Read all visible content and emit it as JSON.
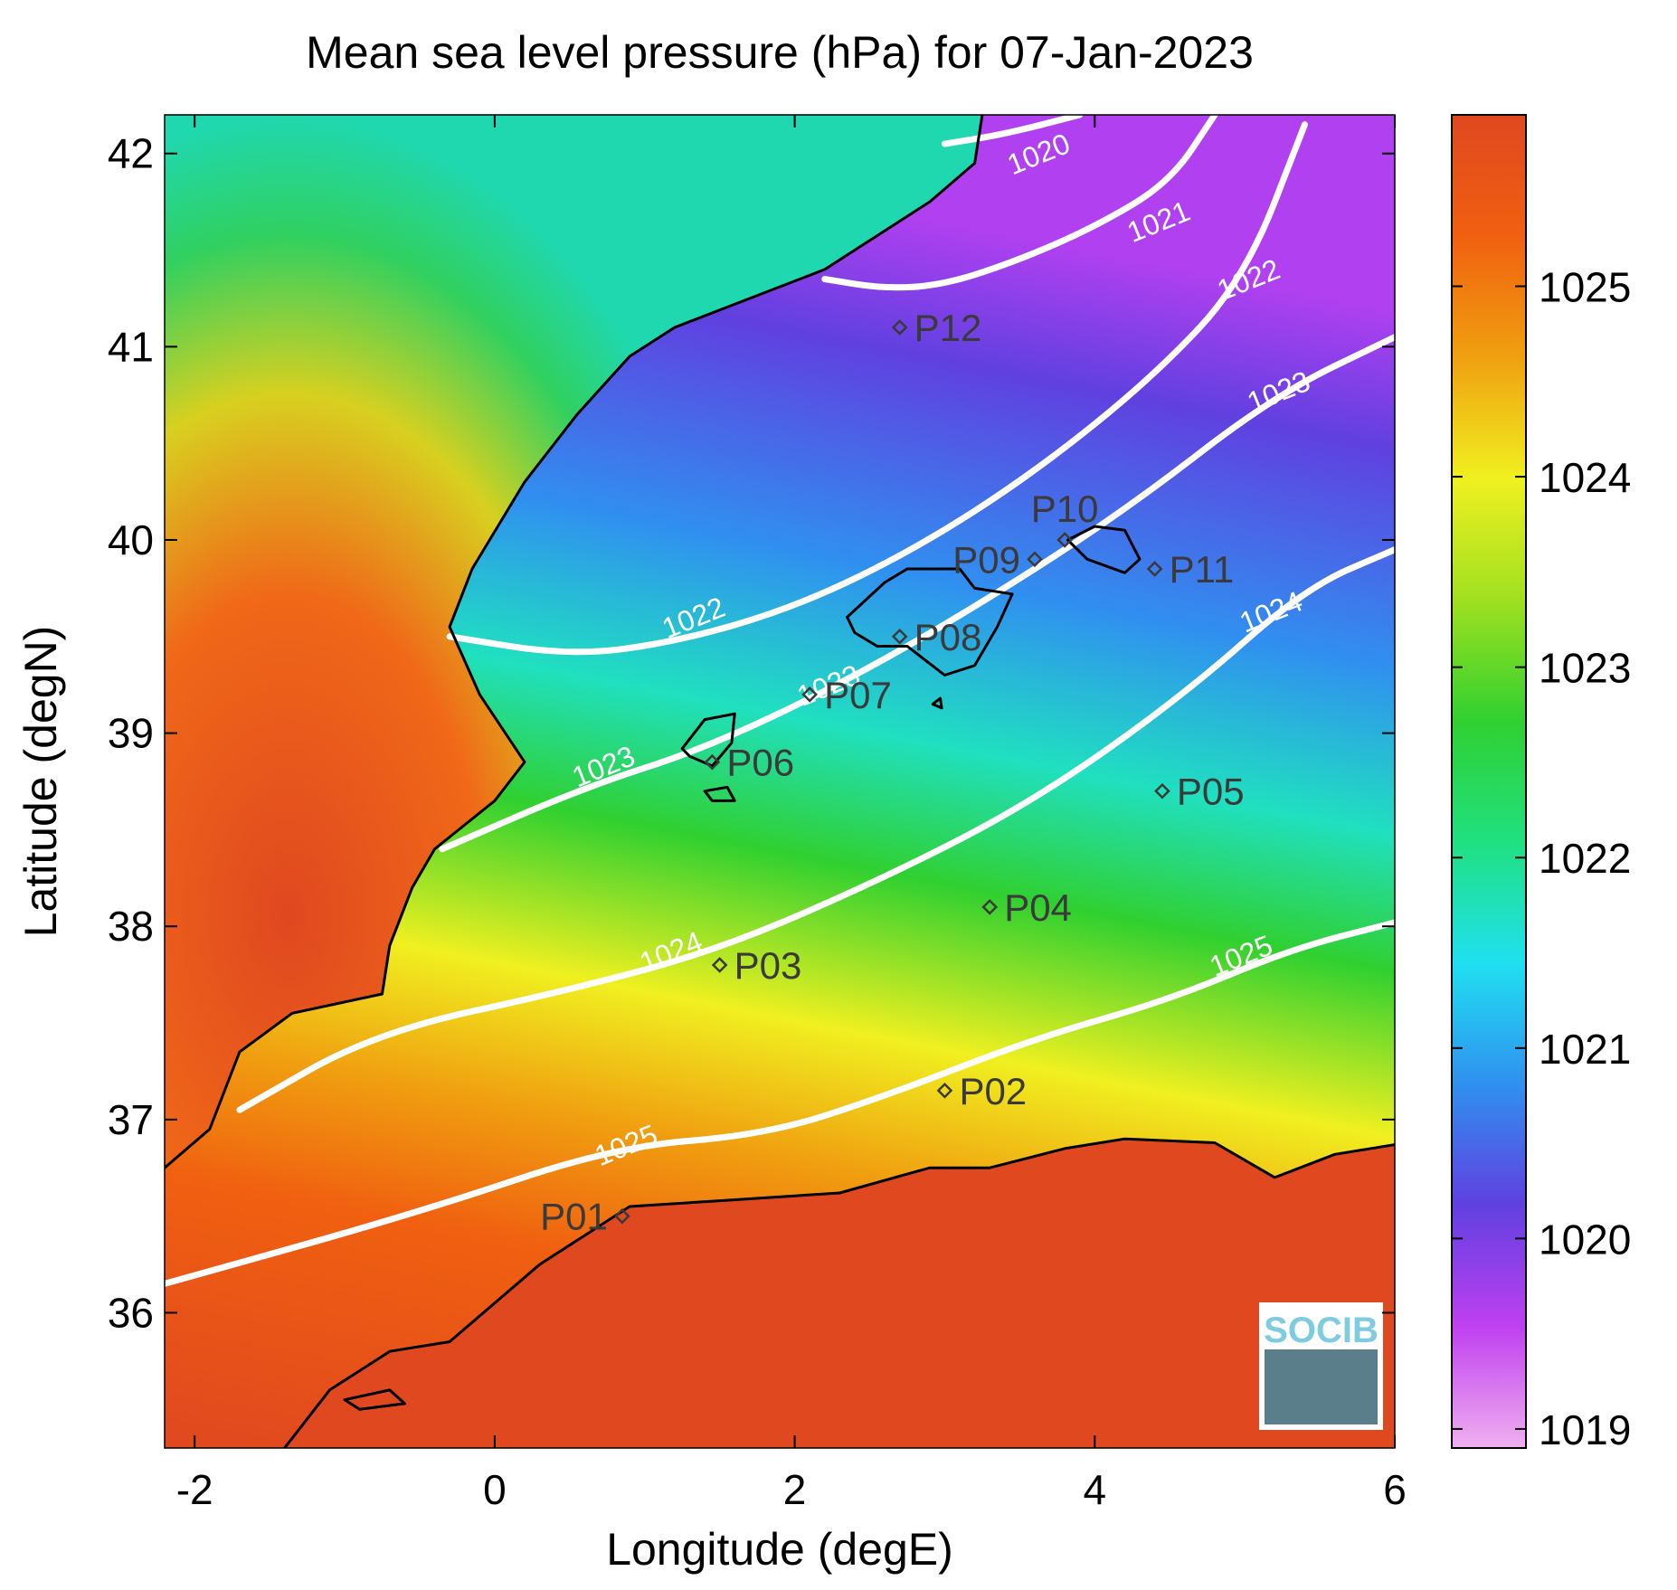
{
  "title": "Mean sea level pressure (hPa) for 07-Jan-2023",
  "x_axis": {
    "label": "Longitude (degE)",
    "range": [
      -2.2,
      6
    ],
    "ticks": [
      -2,
      0,
      2,
      4,
      6
    ],
    "tick_labels": [
      "-2",
      "0",
      "2",
      "4",
      "6"
    ]
  },
  "y_axis": {
    "label": "Latitude (degN)",
    "range": [
      35.3,
      42.2
    ],
    "ticks": [
      36,
      37,
      38,
      39,
      40,
      41,
      42
    ],
    "tick_labels": [
      "36",
      "37",
      "38",
      "39",
      "40",
      "41",
      "42"
    ]
  },
  "colorbar": {
    "range": [
      1018.9,
      1025.9
    ],
    "ticks": [
      1019,
      1020,
      1021,
      1022,
      1023,
      1024,
      1025
    ],
    "tick_labels": [
      "1019",
      "1020",
      "1021",
      "1022",
      "1023",
      "1024",
      "1025"
    ],
    "colormap": [
      "#f0b0f0",
      "#c040f0",
      "#6040e0",
      "#3090f0",
      "#20e0f0",
      "#20e080",
      "#30d030",
      "#a0e020",
      "#f0f020",
      "#f0a010",
      "#f06010",
      "#e04820"
    ]
  },
  "contours": [
    {
      "level": 1020,
      "label": "1020",
      "points": [
        [
          3.0,
          42.05
        ],
        [
          3.4,
          42.1
        ],
        [
          3.9,
          42.2
        ]
      ]
    },
    {
      "level": 1021,
      "label": "1021",
      "points": [
        [
          2.2,
          41.35
        ],
        [
          2.6,
          41.3
        ],
        [
          3.0,
          41.32
        ],
        [
          3.5,
          41.45
        ],
        [
          4.0,
          41.62
        ],
        [
          4.5,
          41.85
        ],
        [
          4.8,
          42.2
        ]
      ]
    },
    {
      "level": 1022,
      "label": "1022",
      "points": [
        [
          -0.3,
          39.5
        ],
        [
          0.5,
          39.4
        ],
        [
          1.2,
          39.47
        ],
        [
          2.0,
          39.65
        ],
        [
          2.8,
          39.95
        ],
        [
          3.6,
          40.35
        ],
        [
          4.4,
          40.85
        ],
        [
          5.0,
          41.35
        ],
        [
          5.4,
          42.15
        ]
      ]
    },
    {
      "level": 1023,
      "label": "1023",
      "points": [
        [
          -0.35,
          38.4
        ],
        [
          0.6,
          38.72
        ],
        [
          1.4,
          38.92
        ],
        [
          2.3,
          39.25
        ],
        [
          3.2,
          39.65
        ],
        [
          4.2,
          40.15
        ],
        [
          5.2,
          40.75
        ],
        [
          6.0,
          41.05
        ]
      ]
    },
    {
      "level": 1024,
      "label": "1024",
      "points": [
        [
          -1.7,
          37.05
        ],
        [
          -0.8,
          37.45
        ],
        [
          0.5,
          37.67
        ],
        [
          1.5,
          37.88
        ],
        [
          2.6,
          38.25
        ],
        [
          3.6,
          38.65
        ],
        [
          4.6,
          39.2
        ],
        [
          5.4,
          39.75
        ],
        [
          6.0,
          39.95
        ]
      ]
    },
    {
      "level": 1025,
      "label": "1025",
      "points": [
        [
          -2.2,
          36.15
        ],
        [
          -0.5,
          36.52
        ],
        [
          0.8,
          36.86
        ],
        [
          1.8,
          36.92
        ],
        [
          2.6,
          37.12
        ],
        [
          3.6,
          37.42
        ],
        [
          4.5,
          37.62
        ],
        [
          5.3,
          37.88
        ],
        [
          6.0,
          38.02
        ]
      ]
    }
  ],
  "contour_labels": [
    {
      "text": "1020",
      "lon": 3.65,
      "lat": 41.95
    },
    {
      "text": "1021",
      "lon": 4.45,
      "lat": 41.6
    },
    {
      "text": "1022",
      "lon": 1.35,
      "lat": 39.55
    },
    {
      "text": "1022",
      "lon": 5.05,
      "lat": 41.3
    },
    {
      "text": "1023",
      "lon": 0.75,
      "lat": 38.78
    },
    {
      "text": "1023",
      "lon": 2.25,
      "lat": 39.2
    },
    {
      "text": "1023",
      "lon": 5.25,
      "lat": 40.72
    },
    {
      "text": "1024",
      "lon": 1.2,
      "lat": 37.82
    },
    {
      "text": "1024",
      "lon": 5.2,
      "lat": 39.58
    },
    {
      "text": "1025",
      "lon": 0.9,
      "lat": 36.82
    },
    {
      "text": "1025",
      "lon": 5.0,
      "lat": 37.8
    }
  ],
  "stations": [
    {
      "name": "P01",
      "lon": 0.85,
      "lat": 36.5,
      "side": "left"
    },
    {
      "name": "P02",
      "lon": 3.0,
      "lat": 37.15,
      "side": "right"
    },
    {
      "name": "P03",
      "lon": 1.5,
      "lat": 37.8,
      "side": "right"
    },
    {
      "name": "P04",
      "lon": 3.3,
      "lat": 38.1,
      "side": "right"
    },
    {
      "name": "P05",
      "lon": 4.45,
      "lat": 38.7,
      "side": "right"
    },
    {
      "name": "P06",
      "lon": 1.45,
      "lat": 38.85,
      "side": "right"
    },
    {
      "name": "P07",
      "lon": 2.1,
      "lat": 39.2,
      "side": "right"
    },
    {
      "name": "P08",
      "lon": 2.7,
      "lat": 39.5,
      "side": "right"
    },
    {
      "name": "P09",
      "lon": 3.6,
      "lat": 39.9,
      "side": "left"
    },
    {
      "name": "P10",
      "lon": 3.8,
      "lat": 40.0,
      "side": "above"
    },
    {
      "name": "P11",
      "lon": 4.4,
      "lat": 39.85,
      "side": "right"
    },
    {
      "name": "P12",
      "lon": 2.7,
      "lat": 41.1,
      "side": "right"
    }
  ],
  "coastlines": {
    "iberia": [
      [
        -2.2,
        36.75
      ],
      [
        -1.9,
        36.95
      ],
      [
        -1.7,
        37.35
      ],
      [
        -1.35,
        37.55
      ],
      [
        -0.75,
        37.65
      ],
      [
        -0.7,
        37.9
      ],
      [
        -0.55,
        38.2
      ],
      [
        -0.4,
        38.4
      ],
      [
        0.0,
        38.65
      ],
      [
        0.2,
        38.85
      ],
      [
        -0.1,
        39.2
      ],
      [
        -0.3,
        39.55
      ],
      [
        -0.15,
        39.85
      ],
      [
        0.2,
        40.3
      ],
      [
        0.55,
        40.65
      ],
      [
        0.9,
        40.95
      ],
      [
        1.2,
        41.1
      ],
      [
        2.2,
        41.4
      ],
      [
        2.9,
        41.75
      ],
      [
        3.2,
        41.95
      ],
      [
        3.25,
        42.2
      ]
    ],
    "africa": [
      [
        -1.6,
        35.1
      ],
      [
        -1.1,
        35.6
      ],
      [
        -0.7,
        35.8
      ],
      [
        -0.3,
        35.85
      ],
      [
        0.3,
        36.25
      ],
      [
        0.9,
        36.55
      ],
      [
        1.5,
        36.58
      ],
      [
        2.3,
        36.62
      ],
      [
        2.9,
        36.75
      ],
      [
        3.3,
        36.75
      ],
      [
        3.8,
        36.85
      ],
      [
        4.2,
        36.9
      ],
      [
        4.8,
        36.88
      ],
      [
        5.2,
        36.7
      ],
      [
        5.6,
        36.82
      ],
      [
        6.0,
        36.87
      ]
    ],
    "mallorca": [
      [
        2.35,
        39.6
      ],
      [
        2.6,
        39.78
      ],
      [
        2.75,
        39.85
      ],
      [
        3.1,
        39.85
      ],
      [
        3.2,
        39.75
      ],
      [
        3.45,
        39.72
      ],
      [
        3.35,
        39.55
      ],
      [
        3.2,
        39.35
      ],
      [
        3.0,
        39.3
      ],
      [
        2.75,
        39.45
      ],
      [
        2.55,
        39.45
      ],
      [
        2.4,
        39.52
      ],
      [
        2.35,
        39.6
      ]
    ],
    "menorca": [
      [
        3.82,
        40.0
      ],
      [
        4.0,
        40.07
      ],
      [
        4.2,
        40.05
      ],
      [
        4.3,
        39.9
      ],
      [
        4.2,
        39.83
      ],
      [
        3.95,
        39.9
      ],
      [
        3.82,
        40.0
      ]
    ],
    "ibiza": [
      [
        1.25,
        38.92
      ],
      [
        1.4,
        39.07
      ],
      [
        1.6,
        39.1
      ],
      [
        1.58,
        38.95
      ],
      [
        1.45,
        38.83
      ],
      [
        1.3,
        38.88
      ],
      [
        1.25,
        38.92
      ]
    ],
    "formentera": [
      [
        1.4,
        38.7
      ],
      [
        1.55,
        38.72
      ],
      [
        1.6,
        38.65
      ],
      [
        1.45,
        38.65
      ],
      [
        1.4,
        38.7
      ]
    ],
    "cabrera": [
      [
        2.92,
        39.15
      ],
      [
        2.97,
        39.18
      ],
      [
        2.98,
        39.13
      ],
      [
        2.92,
        39.15
      ]
    ],
    "alboran": [
      [
        -1.0,
        35.55
      ],
      [
        -0.7,
        35.6
      ],
      [
        -0.6,
        35.53
      ],
      [
        -0.9,
        35.5
      ],
      [
        -1.0,
        35.55
      ]
    ]
  },
  "logo": {
    "text": "SOCIB"
  }
}
